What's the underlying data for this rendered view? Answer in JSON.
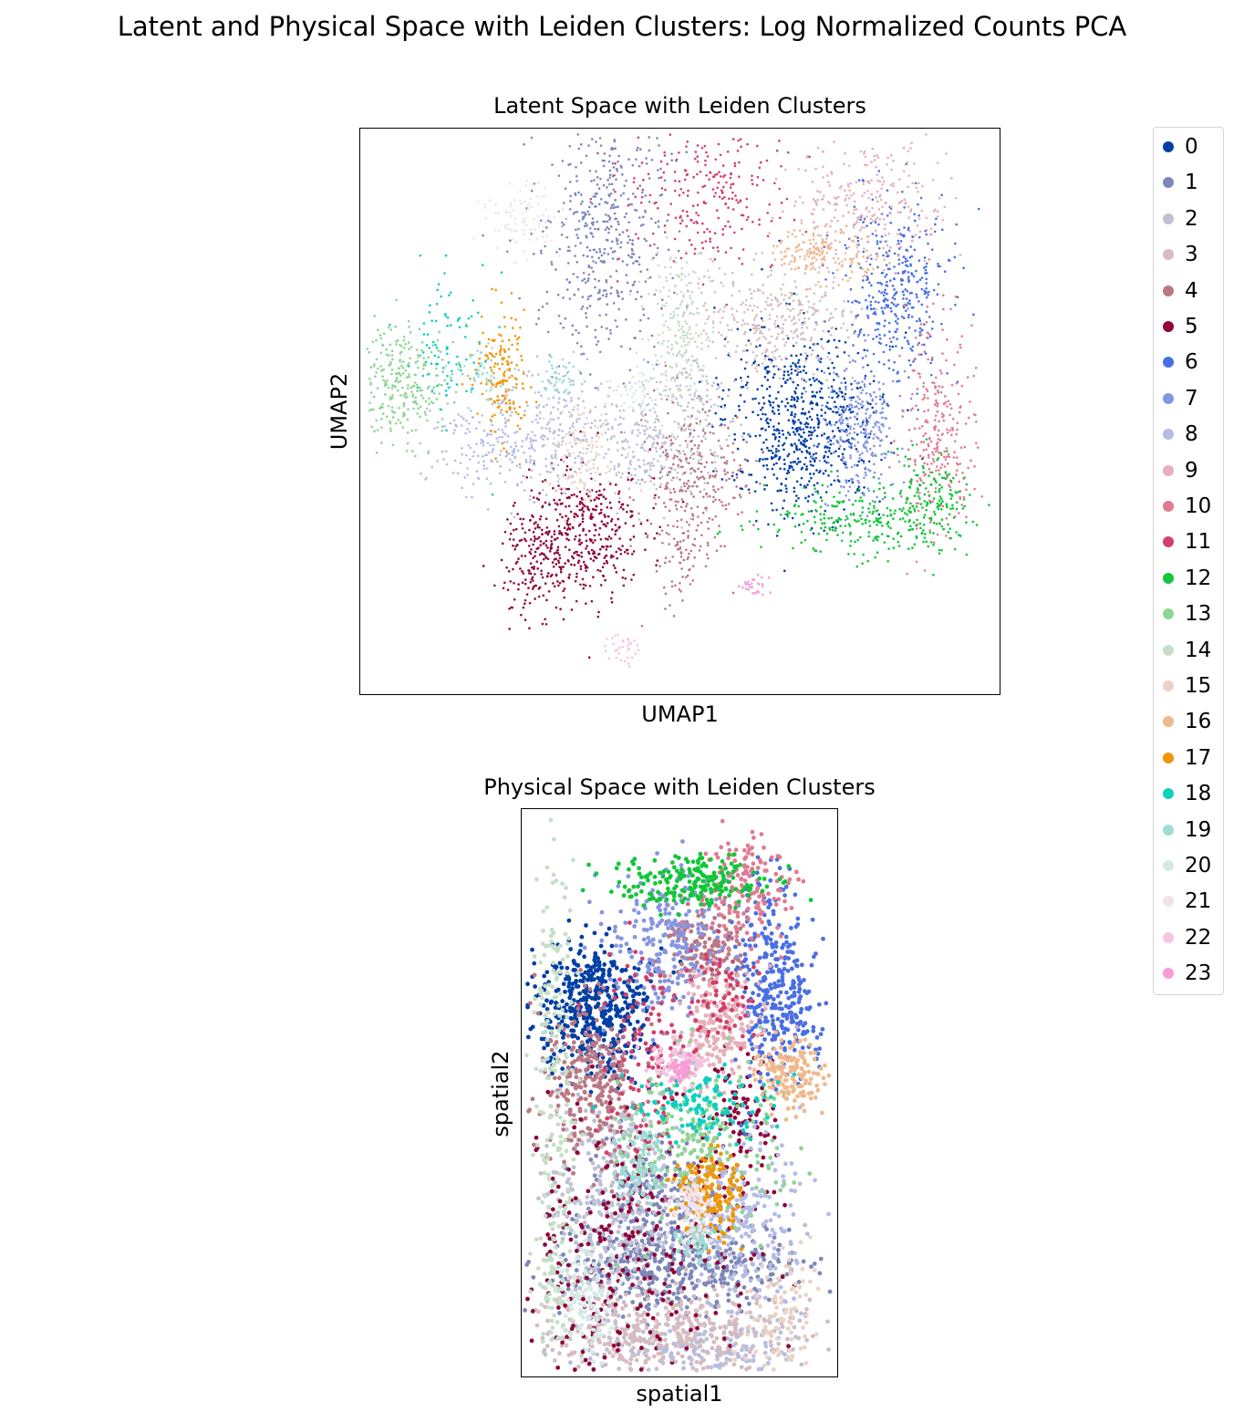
{
  "figure": {
    "suptitle": "Latent and Physical Space with Leiden Clusters: Log Normalized Counts PCA"
  },
  "chart_data": [
    {
      "type": "scatter",
      "title": "Latent Space with Leiden Clusters",
      "xlabel": "UMAP1",
      "ylabel": "UMAP2",
      "xticks": false,
      "yticks": false,
      "grid": false,
      "legend_placement": "right (outside)",
      "clusters": [
        {
          "id": "0",
          "blobs": [
            [
              0.69,
              0.52,
              0.06,
              0.08,
              1200
            ]
          ]
        },
        {
          "id": "1",
          "blobs": [
            [
              0.38,
              0.17,
              0.05,
              0.12,
              900
            ]
          ]
        },
        {
          "id": "2",
          "blobs": [
            [
              0.46,
              0.56,
              0.05,
              0.05,
              500
            ],
            [
              0.52,
              0.47,
              0.03,
              0.04,
              150
            ]
          ]
        },
        {
          "id": "3",
          "blobs": [
            [
              0.65,
              0.34,
              0.06,
              0.05,
              600
            ]
          ]
        },
        {
          "id": "4",
          "blobs": [
            [
              0.52,
              0.63,
              0.04,
              0.07,
              500
            ],
            [
              0.5,
              0.77,
              0.015,
              0.04,
              80
            ]
          ]
        },
        {
          "id": "5",
          "blobs": [
            [
              0.34,
              0.72,
              0.05,
              0.06,
              800
            ],
            [
              0.27,
              0.78,
              0.025,
              0.05,
              200
            ]
          ]
        },
        {
          "id": "6",
          "blobs": [
            [
              0.84,
              0.28,
              0.04,
              0.08,
              700
            ]
          ]
        },
        {
          "id": "7",
          "blobs": [
            [
              0.78,
              0.53,
              0.03,
              0.07,
              500
            ]
          ]
        },
        {
          "id": "8",
          "blobs": [
            [
              0.23,
              0.55,
              0.06,
              0.05,
              500
            ],
            [
              0.33,
              0.52,
              0.04,
              0.05,
              200
            ]
          ]
        },
        {
          "id": "9",
          "blobs": [
            [
              0.79,
              0.14,
              0.06,
              0.06,
              500
            ]
          ]
        },
        {
          "id": "10",
          "blobs": [
            [
              0.9,
              0.53,
              0.03,
              0.09,
              500
            ]
          ]
        },
        {
          "id": "11",
          "blobs": [
            [
              0.55,
              0.12,
              0.07,
              0.07,
              450
            ]
          ]
        },
        {
          "id": "12",
          "blobs": [
            [
              0.8,
              0.69,
              0.08,
              0.03,
              500
            ],
            [
              0.89,
              0.64,
              0.03,
              0.04,
              200
            ]
          ]
        },
        {
          "id": "13",
          "blobs": [
            [
              0.07,
              0.45,
              0.04,
              0.05,
              500
            ]
          ]
        },
        {
          "id": "14",
          "blobs": [
            [
              0.5,
              0.36,
              0.025,
              0.07,
              400
            ]
          ]
        },
        {
          "id": "15",
          "blobs": [
            [
              0.34,
              0.58,
              0.03,
              0.05,
              250
            ]
          ]
        },
        {
          "id": "16",
          "blobs": [
            [
              0.72,
              0.22,
              0.035,
              0.025,
              300
            ]
          ]
        },
        {
          "id": "17",
          "blobs": [
            [
              0.22,
              0.43,
              0.02,
              0.06,
              300
            ]
          ]
        },
        {
          "id": "18",
          "blobs": [
            [
              0.14,
              0.39,
              0.035,
              0.06,
              150
            ]
          ]
        },
        {
          "id": "19",
          "blobs": [
            [
              0.19,
              0.43,
              0.02,
              0.025,
              80
            ],
            [
              0.31,
              0.44,
              0.015,
              0.02,
              80
            ]
          ]
        },
        {
          "id": "20",
          "blobs": [
            [
              0.43,
              0.46,
              0.025,
              0.02,
              100
            ]
          ]
        },
        {
          "id": "21",
          "blobs": [
            [
              0.25,
              0.16,
              0.03,
              0.03,
              150
            ]
          ]
        },
        {
          "id": "22",
          "blobs": [
            [
              0.41,
              0.92,
              0.012,
              0.015,
              60
            ]
          ]
        },
        {
          "id": "23",
          "blobs": [
            [
              0.62,
              0.81,
              0.012,
              0.012,
              50
            ]
          ]
        }
      ]
    },
    {
      "type": "scatter",
      "title": "Physical Space with Leiden Clusters",
      "xlabel": "spatial1",
      "ylabel": "spatial2",
      "xticks": false,
      "yticks": false,
      "grid": false,
      "legend_placement": "right (outside)",
      "clusters": [
        {
          "id": "0",
          "blobs": [
            [
              0.23,
              0.35,
              0.09,
              0.06,
              1000
            ]
          ]
        },
        {
          "id": "1",
          "blobs": [
            [
              0.5,
              0.81,
              0.2,
              0.04,
              800
            ],
            [
              0.42,
              0.7,
              0.1,
              0.05,
              400
            ]
          ]
        },
        {
          "id": "2",
          "blobs": [
            [
              0.28,
              0.7,
              0.1,
              0.12,
              800
            ],
            [
              0.55,
              0.94,
              0.2,
              0.03,
              300
            ]
          ]
        },
        {
          "id": "3",
          "blobs": [
            [
              0.45,
              0.92,
              0.2,
              0.04,
              800
            ]
          ]
        },
        {
          "id": "4",
          "blobs": [
            [
              0.22,
              0.48,
              0.08,
              0.07,
              600
            ],
            [
              0.58,
              0.24,
              0.06,
              0.04,
              300
            ]
          ]
        },
        {
          "id": "5",
          "blobs": [
            [
              0.35,
              0.78,
              0.2,
              0.12,
              600
            ],
            [
              0.7,
              0.55,
              0.05,
              0.08,
              200
            ]
          ]
        },
        {
          "id": "6",
          "blobs": [
            [
              0.77,
              0.3,
              0.05,
              0.09,
              500
            ],
            [
              0.88,
              0.35,
              0.04,
              0.06,
              200
            ]
          ]
        },
        {
          "id": "7",
          "blobs": [
            [
              0.47,
              0.24,
              0.1,
              0.07,
              500
            ]
          ]
        },
        {
          "id": "8",
          "blobs": [
            [
              0.7,
              0.72,
              0.1,
              0.08,
              500
            ],
            [
              0.6,
              0.96,
              0.15,
              0.02,
              100
            ]
          ]
        },
        {
          "id": "9",
          "blobs": [
            [
              0.62,
              0.38,
              0.07,
              0.05,
              400
            ]
          ]
        },
        {
          "id": "10",
          "blobs": [
            [
              0.72,
              0.14,
              0.07,
              0.05,
              300
            ]
          ]
        },
        {
          "id": "11",
          "blobs": [
            [
              0.4,
              0.44,
              0.07,
              0.1,
              250
            ],
            [
              0.62,
              0.33,
              0.06,
              0.04,
              150
            ]
          ]
        },
        {
          "id": "12",
          "blobs": [
            [
              0.52,
              0.13,
              0.12,
              0.025,
              400
            ]
          ]
        },
        {
          "id": "13",
          "blobs": [
            [
              0.58,
              0.58,
              0.12,
              0.07,
              400
            ]
          ]
        },
        {
          "id": "14",
          "blobs": [
            [
              0.1,
              0.4,
              0.035,
              0.17,
              300
            ],
            [
              0.1,
              0.8,
              0.04,
              0.1,
              200
            ]
          ]
        },
        {
          "id": "15",
          "blobs": [
            [
              0.82,
              0.89,
              0.06,
              0.06,
              200
            ]
          ]
        },
        {
          "id": "16",
          "blobs": [
            [
              0.85,
              0.47,
              0.05,
              0.03,
              300
            ]
          ]
        },
        {
          "id": "17",
          "blobs": [
            [
              0.6,
              0.68,
              0.05,
              0.04,
              300
            ]
          ]
        },
        {
          "id": "18",
          "blobs": [
            [
              0.58,
              0.52,
              0.12,
              0.03,
              250
            ]
          ]
        },
        {
          "id": "19",
          "blobs": [
            [
              0.38,
              0.62,
              0.04,
              0.04,
              150
            ],
            [
              0.55,
              0.76,
              0.03,
              0.02,
              80
            ]
          ]
        },
        {
          "id": "20",
          "blobs": [
            [
              0.2,
              0.85,
              0.04,
              0.06,
              200
            ]
          ]
        },
        {
          "id": "21",
          "blobs": [
            [
              0.54,
              0.7,
              0.03,
              0.03,
              150
            ]
          ]
        },
        {
          "id": "22",
          "blobs": [
            [
              0.5,
              0.45,
              0.04,
              0.02,
              150
            ]
          ]
        },
        {
          "id": "23",
          "blobs": [
            [
              0.5,
              0.46,
              0.025,
              0.015,
              80
            ]
          ]
        }
      ]
    }
  ],
  "legend": {
    "items": [
      {
        "label": "0",
        "color": "#023fa5"
      },
      {
        "label": "1",
        "color": "#7d87b9"
      },
      {
        "label": "2",
        "color": "#bec1d4"
      },
      {
        "label": "3",
        "color": "#d6bcc0"
      },
      {
        "label": "4",
        "color": "#bb7784"
      },
      {
        "label": "5",
        "color": "#8e063b"
      },
      {
        "label": "6",
        "color": "#4a6fe3"
      },
      {
        "label": "7",
        "color": "#8595e1"
      },
      {
        "label": "8",
        "color": "#b5bbe3"
      },
      {
        "label": "9",
        "color": "#e6afb9"
      },
      {
        "label": "10",
        "color": "#e07b91"
      },
      {
        "label": "11",
        "color": "#d33f6a"
      },
      {
        "label": "12",
        "color": "#11c638"
      },
      {
        "label": "13",
        "color": "#8dd593"
      },
      {
        "label": "14",
        "color": "#c6dec7"
      },
      {
        "label": "15",
        "color": "#ead3c6"
      },
      {
        "label": "16",
        "color": "#f0b98d"
      },
      {
        "label": "17",
        "color": "#ef9708"
      },
      {
        "label": "18",
        "color": "#0fcfc0"
      },
      {
        "label": "19",
        "color": "#9cded6"
      },
      {
        "label": "20",
        "color": "#d5eae7"
      },
      {
        "label": "21",
        "color": "#f3e1eb"
      },
      {
        "label": "22",
        "color": "#f6c4e1"
      },
      {
        "label": "23",
        "color": "#f79cd4"
      }
    ]
  }
}
